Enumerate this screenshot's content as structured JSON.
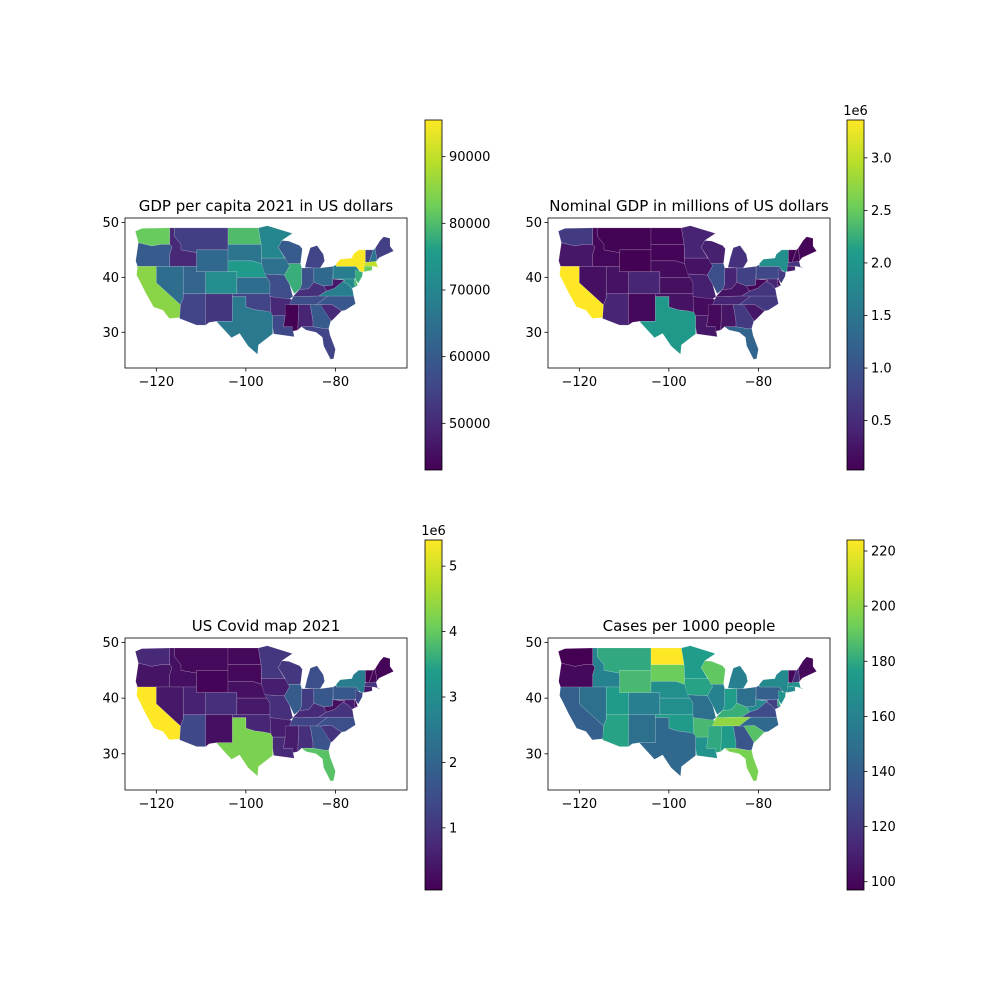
{
  "colors": {
    "colormap": "viridis",
    "stops": [
      "#440154",
      "#482777",
      "#3f4a8a",
      "#31678e",
      "#26838f",
      "#1f9d8a",
      "#6cce5a",
      "#b6de2b",
      "#fee825"
    ]
  },
  "chart_data": [
    {
      "type": "choropleth",
      "title": "GDP per capita 2021 in US dollars",
      "xlim": [
        -127,
        -64
      ],
      "ylim": [
        23.5,
        50.8
      ],
      "x_ticks": [
        -120,
        -100,
        -80
      ],
      "y_ticks": [
        30,
        40,
        50
      ],
      "colorbar": {
        "min": 43000,
        "max": 95500,
        "ticks": [
          50000,
          60000,
          70000,
          80000,
          90000
        ],
        "tick_labels": [
          "50000",
          "60000",
          "70000",
          "80000",
          "90000"
        ],
        "offset_label": ""
      },
      "regions": [
        {
          "id": "WA",
          "value": 82000
        },
        {
          "id": "OR",
          "value": 60000
        },
        {
          "id": "CA",
          "value": 85000
        },
        {
          "id": "ID",
          "value": 50000
        },
        {
          "id": "NV",
          "value": 64000
        },
        {
          "id": "AZ",
          "value": 55000
        },
        {
          "id": "UT",
          "value": 62000
        },
        {
          "id": "MT",
          "value": 54000
        },
        {
          "id": "WY",
          "value": 63000
        },
        {
          "id": "CO",
          "value": 72000
        },
        {
          "id": "NM",
          "value": 52000
        },
        {
          "id": "ND",
          "value": 80000
        },
        {
          "id": "SD",
          "value": 66000
        },
        {
          "id": "NE",
          "value": 75000
        },
        {
          "id": "KS",
          "value": 64000
        },
        {
          "id": "OK",
          "value": 55000
        },
        {
          "id": "TX",
          "value": 67000
        },
        {
          "id": "MN",
          "value": 70000
        },
        {
          "id": "IA",
          "value": 65000
        },
        {
          "id": "MO",
          "value": 57000
        },
        {
          "id": "AR",
          "value": 50000
        },
        {
          "id": "LA",
          "value": 56000
        },
        {
          "id": "WI",
          "value": 60000
        },
        {
          "id": "IL",
          "value": 78000
        },
        {
          "id": "MI",
          "value": 55000
        },
        {
          "id": "IN",
          "value": 58000
        },
        {
          "id": "OH",
          "value": 63000
        },
        {
          "id": "KY",
          "value": 51000
        },
        {
          "id": "TN",
          "value": 57000
        },
        {
          "id": "MS",
          "value": 43000
        },
        {
          "id": "AL",
          "value": 49000
        },
        {
          "id": "GA",
          "value": 60000
        },
        {
          "id": "FL",
          "value": 55000
        },
        {
          "id": "SC",
          "value": 50000
        },
        {
          "id": "NC",
          "value": 59000
        },
        {
          "id": "VA",
          "value": 68000
        },
        {
          "id": "WV",
          "value": 47000
        },
        {
          "id": "PA",
          "value": 68000
        },
        {
          "id": "NY",
          "value": 95000
        },
        {
          "id": "VT",
          "value": 55000
        },
        {
          "id": "NH",
          "value": 66000
        },
        {
          "id": "ME",
          "value": 54000
        },
        {
          "id": "MA",
          "value": 90000
        },
        {
          "id": "CT",
          "value": 82000
        },
        {
          "id": "NJ",
          "value": 78000
        },
        {
          "id": "DE",
          "value": 80000
        },
        {
          "id": "MD",
          "value": 71000
        }
      ]
    },
    {
      "type": "choropleth",
      "title": "Nominal GDP in millions of US dollars",
      "xlim": [
        -127,
        -64
      ],
      "ylim": [
        23.5,
        50.8
      ],
      "x_ticks": [
        -120,
        -100,
        -80
      ],
      "y_ticks": [
        30,
        40,
        50
      ],
      "colorbar": {
        "min": 30000,
        "max": 3360000,
        "ticks": [
          500000,
          1000000,
          1500000,
          2000000,
          2500000,
          3000000
        ],
        "tick_labels": [
          "0.5",
          "1.0",
          "1.5",
          "2.0",
          "2.5",
          "3.0"
        ],
        "offset_label": "1e6"
      },
      "regions": [
        {
          "id": "WA",
          "value": 680000
        },
        {
          "id": "OR",
          "value": 270000
        },
        {
          "id": "CA",
          "value": 3360000
        },
        {
          "id": "ID",
          "value": 95000
        },
        {
          "id": "NV",
          "value": 195000
        },
        {
          "id": "AZ",
          "value": 420000
        },
        {
          "id": "UT",
          "value": 225000
        },
        {
          "id": "MT",
          "value": 58000
        },
        {
          "id": "WY",
          "value": 41000
        },
        {
          "id": "CO",
          "value": 430000
        },
        {
          "id": "NM",
          "value": 110000
        },
        {
          "id": "ND",
          "value": 63000
        },
        {
          "id": "SD",
          "value": 62000
        },
        {
          "id": "NE",
          "value": 146000
        },
        {
          "id": "KS",
          "value": 190000
        },
        {
          "id": "OK",
          "value": 215000
        },
        {
          "id": "TX",
          "value": 2050000
        },
        {
          "id": "MN",
          "value": 410000
        },
        {
          "id": "IA",
          "value": 215000
        },
        {
          "id": "MO",
          "value": 360000
        },
        {
          "id": "AR",
          "value": 145000
        },
        {
          "id": "LA",
          "value": 255000
        },
        {
          "id": "WI",
          "value": 365000
        },
        {
          "id": "IL",
          "value": 940000
        },
        {
          "id": "MI",
          "value": 570000
        },
        {
          "id": "IN",
          "value": 410000
        },
        {
          "id": "OH",
          "value": 750000
        },
        {
          "id": "KY",
          "value": 235000
        },
        {
          "id": "TN",
          "value": 430000
        },
        {
          "id": "MS",
          "value": 125000
        },
        {
          "id": "AL",
          "value": 250000
        },
        {
          "id": "GA",
          "value": 690000
        },
        {
          "id": "FL",
          "value": 1250000
        },
        {
          "id": "SC",
          "value": 270000
        },
        {
          "id": "NC",
          "value": 660000
        },
        {
          "id": "VA",
          "value": 600000
        },
        {
          "id": "WV",
          "value": 85000
        },
        {
          "id": "PA",
          "value": 840000
        },
        {
          "id": "NY",
          "value": 1900000
        },
        {
          "id": "VT",
          "value": 37000
        },
        {
          "id": "NH",
          "value": 100000
        },
        {
          "id": "ME",
          "value": 77000
        },
        {
          "id": "MA",
          "value": 640000
        },
        {
          "id": "CT",
          "value": 300000
        },
        {
          "id": "NJ",
          "value": 680000
        },
        {
          "id": "DE",
          "value": 82000
        },
        {
          "id": "MD",
          "value": 440000
        }
      ]
    },
    {
      "type": "choropleth",
      "title": "US Covid map 2021",
      "xlim": [
        -127,
        -64
      ],
      "ylim": [
        23.5,
        50.8
      ],
      "x_ticks": [
        -120,
        -100,
        -80
      ],
      "y_ticks": [
        30,
        40,
        50
      ],
      "colorbar": {
        "min": 50000,
        "max": 5400000,
        "ticks": [
          1000000,
          2000000,
          3000000,
          4000000,
          5000000
        ],
        "tick_labels": [
          "1",
          "2",
          "3",
          "4",
          "5"
        ],
        "offset_label": "1e6"
      },
      "regions": [
        {
          "id": "WA",
          "value": 750000
        },
        {
          "id": "OR",
          "value": 380000
        },
        {
          "id": "CA",
          "value": 5400000
        },
        {
          "id": "ID",
          "value": 320000
        },
        {
          "id": "NV",
          "value": 460000
        },
        {
          "id": "AZ",
          "value": 1350000
        },
        {
          "id": "UT",
          "value": 620000
        },
        {
          "id": "MT",
          "value": 200000
        },
        {
          "id": "WY",
          "value": 110000
        },
        {
          "id": "CO",
          "value": 900000
        },
        {
          "id": "NM",
          "value": 320000
        },
        {
          "id": "ND",
          "value": 170000
        },
        {
          "id": "SD",
          "value": 180000
        },
        {
          "id": "NE",
          "value": 330000
        },
        {
          "id": "KS",
          "value": 480000
        },
        {
          "id": "OK",
          "value": 700000
        },
        {
          "id": "TX",
          "value": 4200000
        },
        {
          "id": "MN",
          "value": 1000000
        },
        {
          "id": "IA",
          "value": 560000
        },
        {
          "id": "MO",
          "value": 900000
        },
        {
          "id": "AR",
          "value": 560000
        },
        {
          "id": "LA",
          "value": 800000
        },
        {
          "id": "WI",
          "value": 1000000
        },
        {
          "id": "IL",
          "value": 1800000
        },
        {
          "id": "MI",
          "value": 1500000
        },
        {
          "id": "IN",
          "value": 1100000
        },
        {
          "id": "OH",
          "value": 1700000
        },
        {
          "id": "KY",
          "value": 800000
        },
        {
          "id": "TN",
          "value": 1300000
        },
        {
          "id": "MS",
          "value": 520000
        },
        {
          "id": "AL",
          "value": 880000
        },
        {
          "id": "GA",
          "value": 1600000
        },
        {
          "id": "FL",
          "value": 3900000
        },
        {
          "id": "SC",
          "value": 950000
        },
        {
          "id": "NC",
          "value": 1500000
        },
        {
          "id": "VA",
          "value": 950000
        },
        {
          "id": "WV",
          "value": 300000
        },
        {
          "id": "PA",
          "value": 1700000
        },
        {
          "id": "NY",
          "value": 2600000
        },
        {
          "id": "VT",
          "value": 50000
        },
        {
          "id": "NH",
          "value": 150000
        },
        {
          "id": "ME",
          "value": 110000
        },
        {
          "id": "MA",
          "value": 950000
        },
        {
          "id": "CT",
          "value": 450000
        },
        {
          "id": "NJ",
          "value": 1300000
        },
        {
          "id": "DE",
          "value": 160000
        },
        {
          "id": "MD",
          "value": 560000
        }
      ]
    },
    {
      "type": "choropleth",
      "title": "Cases per 1000 people",
      "xlim": [
        -127,
        -64
      ],
      "ylim": [
        23.5,
        50.8
      ],
      "x_ticks": [
        -120,
        -100,
        -80
      ],
      "y_ticks": [
        30,
        40,
        50
      ],
      "colorbar": {
        "min": 97,
        "max": 224,
        "ticks": [
          100,
          120,
          140,
          160,
          180,
          200,
          220
        ],
        "tick_labels": [
          "100",
          "120",
          "140",
          "160",
          "180",
          "200",
          "220"
        ],
        "offset_label": ""
      },
      "regions": [
        {
          "id": "WA",
          "value": 97
        },
        {
          "id": "OR",
          "value": 100
        },
        {
          "id": "CA",
          "value": 140
        },
        {
          "id": "ID",
          "value": 160
        },
        {
          "id": "NV",
          "value": 150
        },
        {
          "id": "AZ",
          "value": 178
        },
        {
          "id": "UT",
          "value": 175
        },
        {
          "id": "MT",
          "value": 180
        },
        {
          "id": "WY",
          "value": 185
        },
        {
          "id": "CO",
          "value": 158
        },
        {
          "id": "NM",
          "value": 150
        },
        {
          "id": "ND",
          "value": 224
        },
        {
          "id": "SD",
          "value": 192
        },
        {
          "id": "NE",
          "value": 168
        },
        {
          "id": "KS",
          "value": 168
        },
        {
          "id": "OK",
          "value": 175
        },
        {
          "id": "TX",
          "value": 145
        },
        {
          "id": "MN",
          "value": 176
        },
        {
          "id": "IA",
          "value": 178
        },
        {
          "id": "MO",
          "value": 150
        },
        {
          "id": "AR",
          "value": 185
        },
        {
          "id": "LA",
          "value": 170
        },
        {
          "id": "WI",
          "value": 190
        },
        {
          "id": "IL",
          "value": 160
        },
        {
          "id": "MI",
          "value": 158
        },
        {
          "id": "IN",
          "value": 176
        },
        {
          "id": "OH",
          "value": 150
        },
        {
          "id": "KY",
          "value": 182
        },
        {
          "id": "TN",
          "value": 200
        },
        {
          "id": "MS",
          "value": 180
        },
        {
          "id": "AL",
          "value": 175
        },
        {
          "id": "GA",
          "value": 135
        },
        {
          "id": "FL",
          "value": 195
        },
        {
          "id": "SC",
          "value": 188
        },
        {
          "id": "NC",
          "value": 145
        },
        {
          "id": "VA",
          "value": 130
        },
        {
          "id": "WV",
          "value": 165
        },
        {
          "id": "PA",
          "value": 140
        },
        {
          "id": "NY",
          "value": 165
        },
        {
          "id": "VT",
          "value": 100
        },
        {
          "id": "NH",
          "value": 115
        },
        {
          "id": "ME",
          "value": 100
        },
        {
          "id": "MA",
          "value": 170
        },
        {
          "id": "CT",
          "value": 165
        },
        {
          "id": "NJ",
          "value": 170
        },
        {
          "id": "DE",
          "value": 180
        },
        {
          "id": "MD",
          "value": 125
        }
      ]
    }
  ]
}
